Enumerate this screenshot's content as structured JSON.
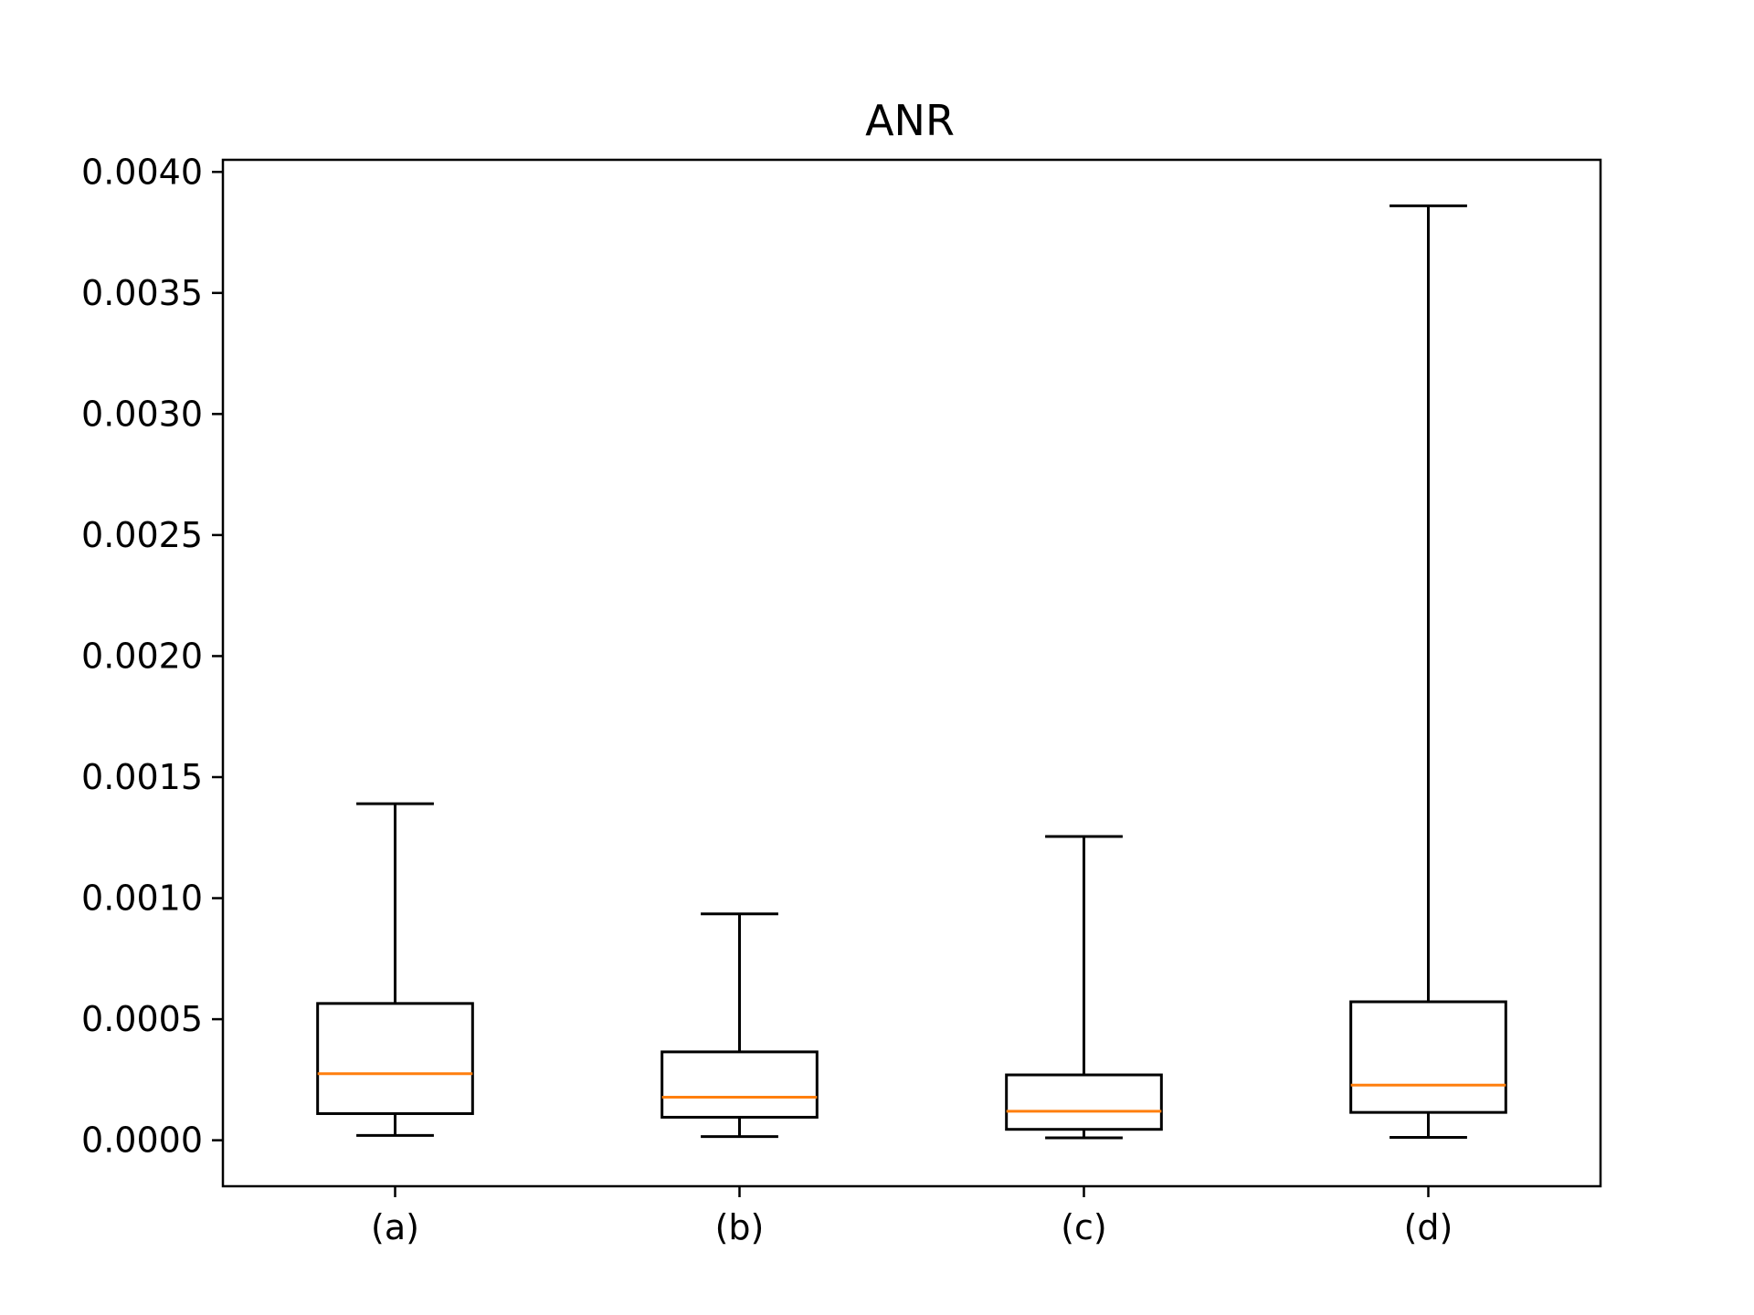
{
  "chart_data": {
    "type": "box",
    "title": "ANR",
    "xlabel": "",
    "ylabel": "",
    "categories": [
      "(a)",
      "(b)",
      "(c)",
      "(d)"
    ],
    "ylim": [
      -0.00019,
      0.00405
    ],
    "yticks": [
      0.0,
      0.0005,
      0.001,
      0.0015,
      0.002,
      0.0025,
      0.003,
      0.0035,
      0.004
    ],
    "ytick_labels": [
      "0.0000",
      "0.0005",
      "0.0010",
      "0.0015",
      "0.0020",
      "0.0025",
      "0.0030",
      "0.0035",
      "0.0040"
    ],
    "grid": false,
    "boxes": [
      {
        "category": "(a)",
        "whisker_low": 2e-05,
        "q1": 0.00011,
        "median": 0.000275,
        "q3": 0.000565,
        "whisker_high": 0.00139
      },
      {
        "category": "(b)",
        "whisker_low": 1.5e-05,
        "q1": 9.5e-05,
        "median": 0.000178,
        "q3": 0.000365,
        "whisker_high": 0.000935
      },
      {
        "category": "(c)",
        "whisker_low": 1e-05,
        "q1": 4.5e-05,
        "median": 0.00012,
        "q3": 0.00027,
        "whisker_high": 0.001255
      },
      {
        "category": "(d)",
        "whisker_low": 1.2e-05,
        "q1": 0.000115,
        "median": 0.000228,
        "q3": 0.000572,
        "whisker_high": 0.00386
      }
    ],
    "colors": {
      "box": "#000000",
      "median": "#ff7f0e",
      "axes": "#000000"
    }
  }
}
